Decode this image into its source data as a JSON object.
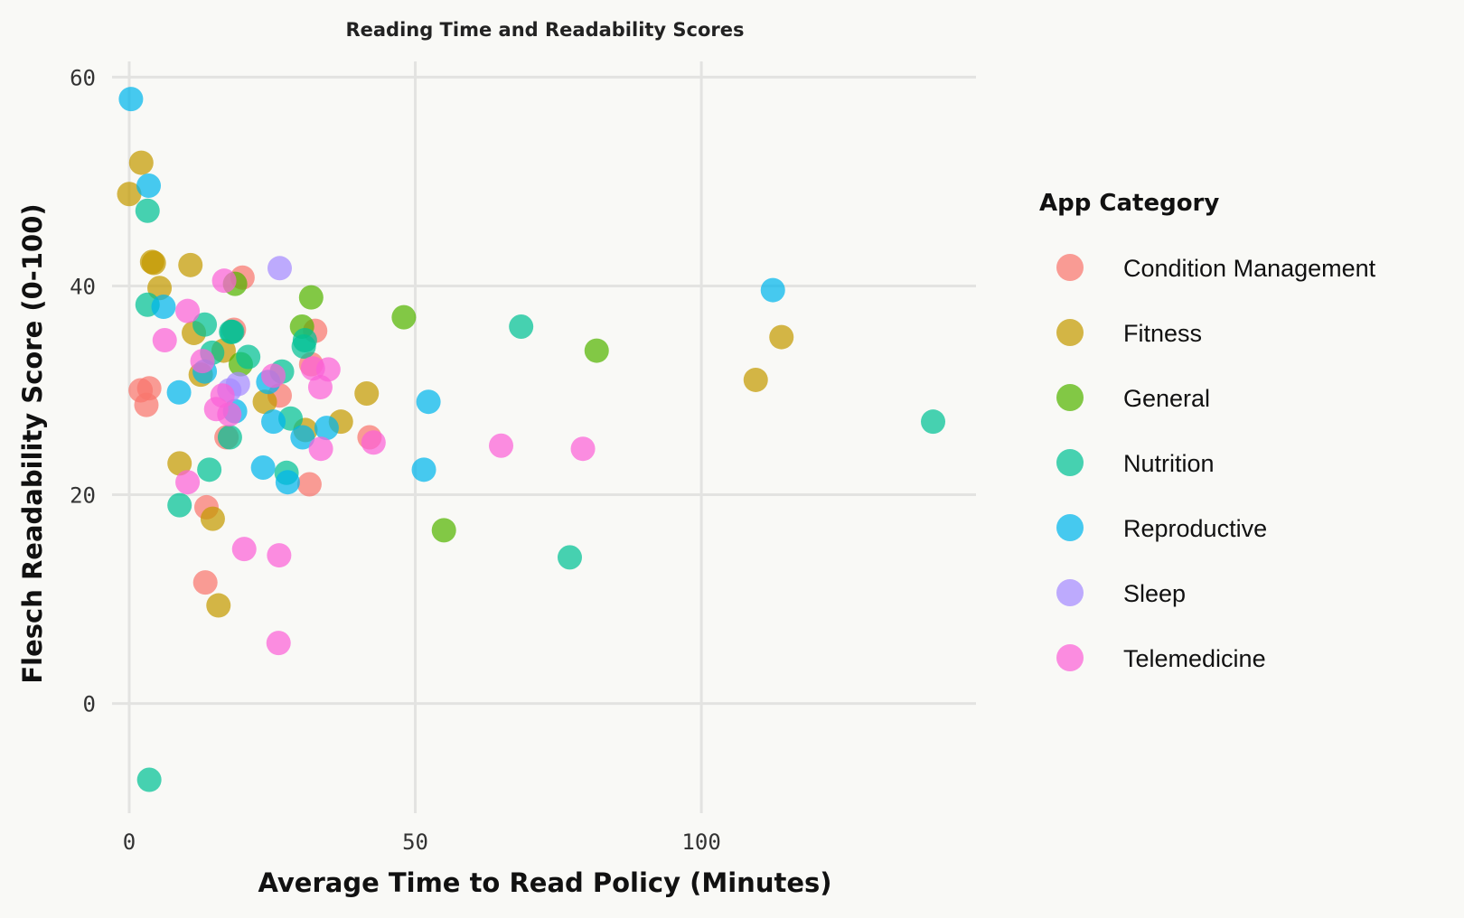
{
  "chart_data": {
    "type": "scatter",
    "title": "Reading Time and Readability Scores",
    "xlabel": "Average Time to Read Policy (Minutes)",
    "ylabel": "Flesch Readability Score (0-100)",
    "xlim": [
      -3,
      148
    ],
    "ylim": [
      -10.5,
      61.5
    ],
    "xticks": [
      0,
      50,
      100
    ],
    "yticks": [
      0,
      20,
      40,
      60
    ],
    "grid": true,
    "legend": {
      "title": "App Category",
      "placement": "right"
    },
    "series": [
      {
        "name": "Condition Management",
        "color": "#f8766d",
        "points": [
          [
            2,
            30
          ],
          [
            3.5,
            30.2
          ],
          [
            3,
            28.6
          ],
          [
            13.5,
            18.8
          ],
          [
            13.3,
            11.6
          ],
          [
            17,
            25.5
          ],
          [
            18.3,
            35.8
          ],
          [
            19.8,
            40.8
          ],
          [
            26.3,
            29.5
          ],
          [
            31.5,
            21
          ],
          [
            32.5,
            35.7
          ],
          [
            31.8,
            32.5
          ],
          [
            42,
            25.5
          ]
        ]
      },
      {
        "name": "Fitness",
        "color": "#c49a00",
        "points": [
          [
            0,
            48.8
          ],
          [
            2.1,
            51.8
          ],
          [
            4,
            42.3
          ],
          [
            4.3,
            42.2
          ],
          [
            5.3,
            39.8
          ],
          [
            10.7,
            42
          ],
          [
            11.3,
            35.5
          ],
          [
            12.5,
            31.5
          ],
          [
            8.8,
            23
          ],
          [
            14.6,
            17.7
          ],
          [
            15.6,
            9.4
          ],
          [
            16.5,
            33.8
          ],
          [
            23.7,
            28.9
          ],
          [
            30.8,
            26.2
          ],
          [
            37,
            27
          ],
          [
            41.5,
            29.7
          ],
          [
            109.5,
            31
          ],
          [
            114,
            35.1
          ]
        ]
      },
      {
        "name": "General",
        "color": "#53b400",
        "points": [
          [
            18.5,
            40.2
          ],
          [
            19.5,
            32.5
          ],
          [
            30.2,
            36.1
          ],
          [
            31.8,
            38.9
          ],
          [
            48,
            37
          ],
          [
            55,
            16.6
          ],
          [
            81.7,
            33.8
          ]
        ]
      },
      {
        "name": "Nutrition",
        "color": "#00c094",
        "points": [
          [
            3.2,
            47.2
          ],
          [
            3.2,
            38.2
          ],
          [
            3.5,
            -7.3
          ],
          [
            8.8,
            19
          ],
          [
            13.2,
            36.3
          ],
          [
            14,
            22.4
          ],
          [
            14.5,
            33.6
          ],
          [
            17.6,
            25.5
          ],
          [
            17.8,
            35.6
          ],
          [
            18,
            35.6
          ],
          [
            20.8,
            33.2
          ],
          [
            26.7,
            31.8
          ],
          [
            27.5,
            22.1
          ],
          [
            28.2,
            27.3
          ],
          [
            30.5,
            34.2
          ],
          [
            30.7,
            34.8
          ],
          [
            68.5,
            36.1
          ],
          [
            77,
            14
          ],
          [
            140.5,
            27
          ]
        ]
      },
      {
        "name": "Reproductive",
        "color": "#00b6eb",
        "points": [
          [
            0.3,
            57.9
          ],
          [
            3.4,
            49.6
          ],
          [
            6,
            38
          ],
          [
            8.7,
            29.8
          ],
          [
            13.2,
            31.8
          ],
          [
            18.5,
            28
          ],
          [
            23.4,
            22.6
          ],
          [
            24.3,
            30.8
          ],
          [
            25.2,
            27
          ],
          [
            27.7,
            21.2
          ],
          [
            30.3,
            25.5
          ],
          [
            34.5,
            26.4
          ],
          [
            52.3,
            28.9
          ],
          [
            51.5,
            22.4
          ],
          [
            112.5,
            39.6
          ]
        ]
      },
      {
        "name": "Sleep",
        "color": "#a58aff",
        "points": [
          [
            17.5,
            30
          ],
          [
            19,
            30.6
          ],
          [
            26.3,
            41.7
          ]
        ]
      },
      {
        "name": "Telemedicine",
        "color": "#fb61d7",
        "points": [
          [
            6.2,
            34.8
          ],
          [
            10.2,
            37.6
          ],
          [
            10.2,
            21.2
          ],
          [
            12.8,
            32.8
          ],
          [
            15.2,
            28.2
          ],
          [
            16.3,
            29.5
          ],
          [
            16.6,
            40.5
          ],
          [
            17.5,
            27.7
          ],
          [
            20.1,
            14.8
          ],
          [
            25.2,
            31.4
          ],
          [
            26.2,
            14.2
          ],
          [
            26.1,
            5.8
          ],
          [
            32.1,
            32.1
          ],
          [
            33.4,
            30.3
          ],
          [
            33.5,
            24.4
          ],
          [
            34.8,
            32
          ],
          [
            42.7,
            25
          ],
          [
            65,
            24.7
          ],
          [
            79.3,
            24.4
          ]
        ]
      }
    ]
  }
}
